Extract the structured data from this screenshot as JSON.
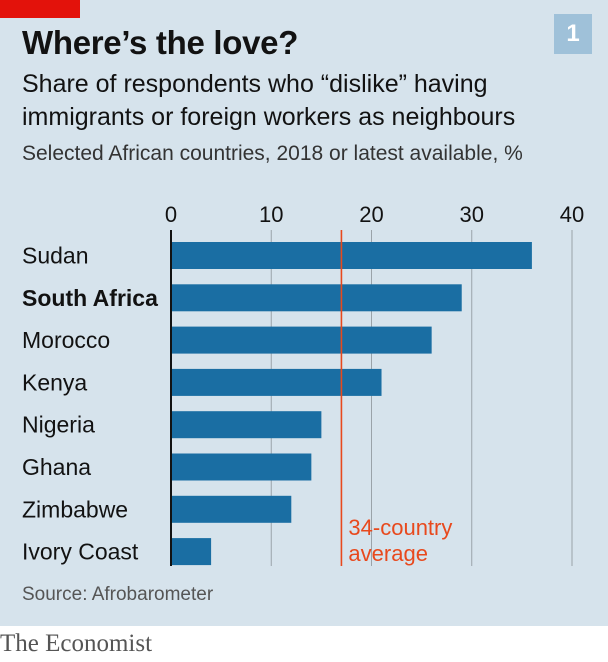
{
  "header": {
    "badge": "1",
    "title": "Where’s the love?",
    "subtitle": "Share of respondents who “dislike” having immigrants or foreign workers as neighbours",
    "note": "Selected African countries, 2018 or latest available, %"
  },
  "chart_data": {
    "type": "bar",
    "orientation": "horizontal",
    "categories": [
      "Sudan",
      "South Africa",
      "Morocco",
      "Kenya",
      "Nigeria",
      "Ghana",
      "Zimbabwe",
      "Ivory Coast"
    ],
    "highlighted_category": "South Africa",
    "values": [
      36,
      29,
      26,
      21,
      15,
      14,
      12,
      4
    ],
    "xlim": [
      0,
      40
    ],
    "xticks": [
      0,
      10,
      20,
      30,
      40
    ],
    "axis_position": "top",
    "grid": true,
    "reference_line": {
      "value": 17,
      "label_lines": [
        "34-country",
        "average"
      ]
    },
    "colors": {
      "bar": "#1a6ea3",
      "reference": "#e8491d",
      "grid": "#9aa3a9",
      "axis": "#121212"
    }
  },
  "source": "Source: Afrobarometer",
  "footer": "The Economist"
}
